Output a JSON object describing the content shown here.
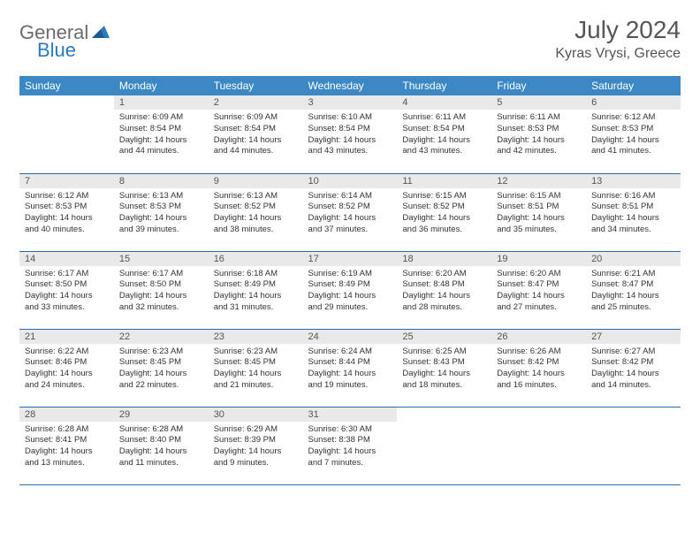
{
  "logo": {
    "part1": "General",
    "part2": "Blue"
  },
  "title": "July 2024",
  "location": "Kyras Vrysi, Greece",
  "colors": {
    "header_bg": "#3b88c4",
    "header_text": "#ffffff",
    "daynum_bg": "#e9e9e9",
    "row_border": "#2b6ca3",
    "logo_gray": "#6b6b6b",
    "logo_blue": "#2b7ac0"
  },
  "day_labels": [
    "Sunday",
    "Monday",
    "Tuesday",
    "Wednesday",
    "Thursday",
    "Friday",
    "Saturday"
  ],
  "weeks": [
    [
      {
        "n": "",
        "sr": "",
        "ss": "",
        "dl": "",
        "empty": true
      },
      {
        "n": "1",
        "sr": "Sunrise: 6:09 AM",
        "ss": "Sunset: 8:54 PM",
        "dl": "Daylight: 14 hours and 44 minutes."
      },
      {
        "n": "2",
        "sr": "Sunrise: 6:09 AM",
        "ss": "Sunset: 8:54 PM",
        "dl": "Daylight: 14 hours and 44 minutes."
      },
      {
        "n": "3",
        "sr": "Sunrise: 6:10 AM",
        "ss": "Sunset: 8:54 PM",
        "dl": "Daylight: 14 hours and 43 minutes."
      },
      {
        "n": "4",
        "sr": "Sunrise: 6:11 AM",
        "ss": "Sunset: 8:54 PM",
        "dl": "Daylight: 14 hours and 43 minutes."
      },
      {
        "n": "5",
        "sr": "Sunrise: 6:11 AM",
        "ss": "Sunset: 8:53 PM",
        "dl": "Daylight: 14 hours and 42 minutes."
      },
      {
        "n": "6",
        "sr": "Sunrise: 6:12 AM",
        "ss": "Sunset: 8:53 PM",
        "dl": "Daylight: 14 hours and 41 minutes."
      }
    ],
    [
      {
        "n": "7",
        "sr": "Sunrise: 6:12 AM",
        "ss": "Sunset: 8:53 PM",
        "dl": "Daylight: 14 hours and 40 minutes."
      },
      {
        "n": "8",
        "sr": "Sunrise: 6:13 AM",
        "ss": "Sunset: 8:53 PM",
        "dl": "Daylight: 14 hours and 39 minutes."
      },
      {
        "n": "9",
        "sr": "Sunrise: 6:13 AM",
        "ss": "Sunset: 8:52 PM",
        "dl": "Daylight: 14 hours and 38 minutes."
      },
      {
        "n": "10",
        "sr": "Sunrise: 6:14 AM",
        "ss": "Sunset: 8:52 PM",
        "dl": "Daylight: 14 hours and 37 minutes."
      },
      {
        "n": "11",
        "sr": "Sunrise: 6:15 AM",
        "ss": "Sunset: 8:52 PM",
        "dl": "Daylight: 14 hours and 36 minutes."
      },
      {
        "n": "12",
        "sr": "Sunrise: 6:15 AM",
        "ss": "Sunset: 8:51 PM",
        "dl": "Daylight: 14 hours and 35 minutes."
      },
      {
        "n": "13",
        "sr": "Sunrise: 6:16 AM",
        "ss": "Sunset: 8:51 PM",
        "dl": "Daylight: 14 hours and 34 minutes."
      }
    ],
    [
      {
        "n": "14",
        "sr": "Sunrise: 6:17 AM",
        "ss": "Sunset: 8:50 PM",
        "dl": "Daylight: 14 hours and 33 minutes."
      },
      {
        "n": "15",
        "sr": "Sunrise: 6:17 AM",
        "ss": "Sunset: 8:50 PM",
        "dl": "Daylight: 14 hours and 32 minutes."
      },
      {
        "n": "16",
        "sr": "Sunrise: 6:18 AM",
        "ss": "Sunset: 8:49 PM",
        "dl": "Daylight: 14 hours and 31 minutes."
      },
      {
        "n": "17",
        "sr": "Sunrise: 6:19 AM",
        "ss": "Sunset: 8:49 PM",
        "dl": "Daylight: 14 hours and 29 minutes."
      },
      {
        "n": "18",
        "sr": "Sunrise: 6:20 AM",
        "ss": "Sunset: 8:48 PM",
        "dl": "Daylight: 14 hours and 28 minutes."
      },
      {
        "n": "19",
        "sr": "Sunrise: 6:20 AM",
        "ss": "Sunset: 8:47 PM",
        "dl": "Daylight: 14 hours and 27 minutes."
      },
      {
        "n": "20",
        "sr": "Sunrise: 6:21 AM",
        "ss": "Sunset: 8:47 PM",
        "dl": "Daylight: 14 hours and 25 minutes."
      }
    ],
    [
      {
        "n": "21",
        "sr": "Sunrise: 6:22 AM",
        "ss": "Sunset: 8:46 PM",
        "dl": "Daylight: 14 hours and 24 minutes."
      },
      {
        "n": "22",
        "sr": "Sunrise: 6:23 AM",
        "ss": "Sunset: 8:45 PM",
        "dl": "Daylight: 14 hours and 22 minutes."
      },
      {
        "n": "23",
        "sr": "Sunrise: 6:23 AM",
        "ss": "Sunset: 8:45 PM",
        "dl": "Daylight: 14 hours and 21 minutes."
      },
      {
        "n": "24",
        "sr": "Sunrise: 6:24 AM",
        "ss": "Sunset: 8:44 PM",
        "dl": "Daylight: 14 hours and 19 minutes."
      },
      {
        "n": "25",
        "sr": "Sunrise: 6:25 AM",
        "ss": "Sunset: 8:43 PM",
        "dl": "Daylight: 14 hours and 18 minutes."
      },
      {
        "n": "26",
        "sr": "Sunrise: 6:26 AM",
        "ss": "Sunset: 8:42 PM",
        "dl": "Daylight: 14 hours and 16 minutes."
      },
      {
        "n": "27",
        "sr": "Sunrise: 6:27 AM",
        "ss": "Sunset: 8:42 PM",
        "dl": "Daylight: 14 hours and 14 minutes."
      }
    ],
    [
      {
        "n": "28",
        "sr": "Sunrise: 6:28 AM",
        "ss": "Sunset: 8:41 PM",
        "dl": "Daylight: 14 hours and 13 minutes."
      },
      {
        "n": "29",
        "sr": "Sunrise: 6:28 AM",
        "ss": "Sunset: 8:40 PM",
        "dl": "Daylight: 14 hours and 11 minutes."
      },
      {
        "n": "30",
        "sr": "Sunrise: 6:29 AM",
        "ss": "Sunset: 8:39 PM",
        "dl": "Daylight: 14 hours and 9 minutes."
      },
      {
        "n": "31",
        "sr": "Sunrise: 6:30 AM",
        "ss": "Sunset: 8:38 PM",
        "dl": "Daylight: 14 hours and 7 minutes."
      },
      {
        "n": "",
        "sr": "",
        "ss": "",
        "dl": "",
        "empty": true
      },
      {
        "n": "",
        "sr": "",
        "ss": "",
        "dl": "",
        "empty": true
      },
      {
        "n": "",
        "sr": "",
        "ss": "",
        "dl": "",
        "empty": true
      }
    ]
  ]
}
